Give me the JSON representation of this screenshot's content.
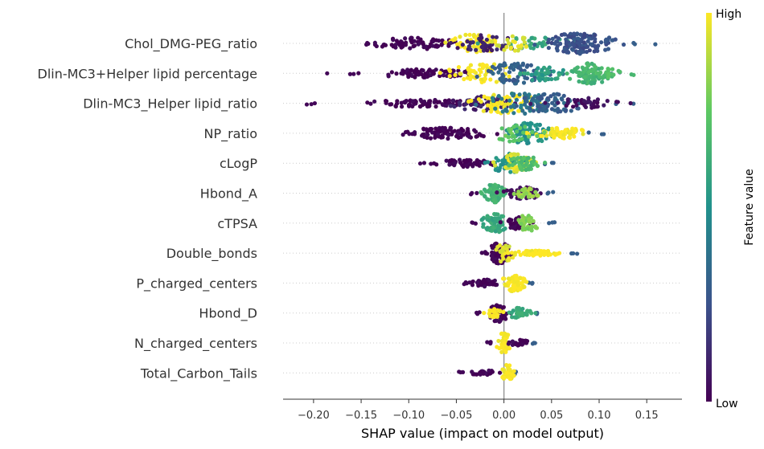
{
  "chart_data": {
    "type": "scatter",
    "subtype": "shap-beeswarm",
    "xlabel": "SHAP value (impact on model output)",
    "xlim": [
      -0.232,
      0.187
    ],
    "xticks": [
      -0.2,
      -0.15,
      -0.1,
      -0.05,
      0.0,
      0.05,
      0.1,
      0.15
    ],
    "xtick_labels": [
      "−0.20",
      "−0.15",
      "−0.10",
      "−0.05",
      "0.00",
      "0.05",
      "0.10",
      "0.15"
    ],
    "grid": "dotted horizontal row guides",
    "colorbar": {
      "label": "Feature value",
      "high_label": "High",
      "low_label": "Low",
      "colormap": "viridis",
      "colors": [
        "#440154",
        "#3b528b",
        "#21918c",
        "#5ec962",
        "#fde725"
      ]
    },
    "features": [
      {
        "name": "Chol_DMG-PEG_ratio",
        "min": -0.17,
        "max": 0.166,
        "clusters": [
          {
            "center": -0.09,
            "spread": 0.04,
            "feature_value": 0.0,
            "count": 70,
            "height": 0.55
          },
          {
            "center": -0.03,
            "spread": 0.025,
            "feature_value": 1.0,
            "count": 60,
            "height": 0.9
          },
          {
            "center": -0.02,
            "spread": 0.03,
            "feature_value": 0.1,
            "count": 40,
            "height": 0.8
          },
          {
            "center": 0.03,
            "spread": 0.03,
            "feature_value": 0.6,
            "count": 30,
            "height": 0.6
          },
          {
            "center": 0.08,
            "spread": 0.03,
            "feature_value": 0.25,
            "count": 130,
            "height": 1.0
          },
          {
            "center": 0.01,
            "spread": 0.02,
            "feature_value": 0.95,
            "count": 25,
            "height": 0.7
          }
        ]
      },
      {
        "name": "Dlin-MC3+Helper lipid percentage",
        "min": -0.19,
        "max": 0.14,
        "clusters": [
          {
            "center": -0.08,
            "spread": 0.05,
            "feature_value": 0.0,
            "count": 80,
            "height": 0.4
          },
          {
            "center": -0.02,
            "spread": 0.03,
            "feature_value": 1.0,
            "count": 60,
            "height": 0.9
          },
          {
            "center": 0.01,
            "spread": 0.03,
            "feature_value": 0.3,
            "count": 70,
            "height": 1.0
          },
          {
            "center": 0.04,
            "spread": 0.02,
            "feature_value": 0.55,
            "count": 40,
            "height": 0.7
          },
          {
            "center": 0.09,
            "spread": 0.02,
            "feature_value": 0.65,
            "count": 90,
            "height": 1.0
          },
          {
            "center": 0.11,
            "spread": 0.02,
            "feature_value": 0.7,
            "count": 25,
            "height": 0.5
          }
        ]
      },
      {
        "name": "Dlin-MC3_Helper lipid_ratio",
        "min": -0.215,
        "max": 0.14,
        "clusters": [
          {
            "center": -0.09,
            "spread": 0.05,
            "feature_value": 0.0,
            "count": 80,
            "height": 0.35
          },
          {
            "center": -0.02,
            "spread": 0.03,
            "feature_value": 0.1,
            "count": 60,
            "height": 0.7
          },
          {
            "center": 0.0,
            "spread": 0.03,
            "feature_value": 1.0,
            "count": 60,
            "height": 1.0
          },
          {
            "center": 0.02,
            "spread": 0.03,
            "feature_value": 0.4,
            "count": 60,
            "height": 1.0
          },
          {
            "center": 0.05,
            "spread": 0.03,
            "feature_value": 0.3,
            "count": 60,
            "height": 0.9
          },
          {
            "center": 0.09,
            "spread": 0.03,
            "feature_value": 0.05,
            "count": 40,
            "height": 0.5
          }
        ]
      },
      {
        "name": "NP_ratio",
        "min": -0.12,
        "max": 0.11,
        "clusters": [
          {
            "center": -0.06,
            "spread": 0.035,
            "feature_value": 0.0,
            "count": 90,
            "height": 0.55
          },
          {
            "center": 0.025,
            "spread": 0.02,
            "feature_value": 0.5,
            "count": 80,
            "height": 1.0
          },
          {
            "center": 0.06,
            "spread": 0.025,
            "feature_value": 1.0,
            "count": 60,
            "height": 0.5
          },
          {
            "center": 0.01,
            "spread": 0.02,
            "feature_value": 0.75,
            "count": 30,
            "height": 0.8
          }
        ]
      },
      {
        "name": "cLogP",
        "min": -0.09,
        "max": 0.055,
        "clusters": [
          {
            "center": -0.04,
            "spread": 0.025,
            "feature_value": 0.0,
            "count": 50,
            "height": 0.35
          },
          {
            "center": 0.005,
            "spread": 0.015,
            "feature_value": 0.5,
            "count": 60,
            "height": 1.0
          },
          {
            "center": 0.01,
            "spread": 0.015,
            "feature_value": 0.95,
            "count": 40,
            "height": 0.9
          },
          {
            "center": 0.02,
            "spread": 0.015,
            "feature_value": 0.7,
            "count": 40,
            "height": 0.7
          }
        ]
      },
      {
        "name": "Hbond_A",
        "min": -0.035,
        "max": 0.055,
        "clusters": [
          {
            "center": -0.01,
            "spread": 0.01,
            "feature_value": 0.65,
            "count": 70,
            "height": 0.9
          },
          {
            "center": 0.02,
            "spread": 0.015,
            "feature_value": 0.05,
            "count": 50,
            "height": 0.6
          },
          {
            "center": 0.025,
            "spread": 0.01,
            "feature_value": 0.85,
            "count": 30,
            "height": 0.5
          }
        ]
      },
      {
        "name": "cTPSA",
        "min": -0.035,
        "max": 0.055,
        "clusters": [
          {
            "center": -0.01,
            "spread": 0.012,
            "feature_value": 0.6,
            "count": 70,
            "height": 0.9
          },
          {
            "center": 0.015,
            "spread": 0.01,
            "feature_value": 0.0,
            "count": 40,
            "height": 0.6
          },
          {
            "center": 0.025,
            "spread": 0.01,
            "feature_value": 0.8,
            "count": 40,
            "height": 0.8
          }
        ]
      },
      {
        "name": "Double_bonds",
        "min": -0.03,
        "max": 0.08,
        "clusters": [
          {
            "center": -0.005,
            "spread": 0.01,
            "feature_value": 0.0,
            "count": 80,
            "height": 1.0
          },
          {
            "center": 0.0,
            "spread": 0.008,
            "feature_value": 0.95,
            "count": 25,
            "height": 0.9
          },
          {
            "center": 0.035,
            "spread": 0.02,
            "feature_value": 1.0,
            "count": 50,
            "height": 0.25
          }
        ]
      },
      {
        "name": "P_charged_centers",
        "min": -0.045,
        "max": 0.035,
        "clusters": [
          {
            "center": -0.02,
            "spread": 0.012,
            "feature_value": 0.0,
            "count": 50,
            "height": 0.35
          },
          {
            "center": 0.01,
            "spread": 0.01,
            "feature_value": 1.0,
            "count": 60,
            "height": 0.8
          }
        ]
      },
      {
        "name": "Hbond_D",
        "min": -0.03,
        "max": 0.035,
        "clusters": [
          {
            "center": -0.005,
            "spread": 0.008,
            "feature_value": 0.0,
            "count": 50,
            "height": 0.9
          },
          {
            "center": 0.015,
            "spread": 0.01,
            "feature_value": 0.6,
            "count": 35,
            "height": 0.5
          },
          {
            "center": -0.01,
            "spread": 0.01,
            "feature_value": 1.0,
            "count": 20,
            "height": 0.4
          }
        ]
      },
      {
        "name": "N_charged_centers",
        "min": -0.02,
        "max": 0.035,
        "clusters": [
          {
            "center": 0.0,
            "spread": 0.006,
            "feature_value": 1.0,
            "count": 40,
            "height": 1.0
          },
          {
            "center": 0.015,
            "spread": 0.01,
            "feature_value": 0.0,
            "count": 30,
            "height": 0.3
          }
        ]
      },
      {
        "name": "Total_Carbon_Tails",
        "min": -0.05,
        "max": 0.015,
        "clusters": [
          {
            "center": -0.02,
            "spread": 0.012,
            "feature_value": 0.0,
            "count": 30,
            "height": 0.25
          },
          {
            "center": 0.004,
            "spread": 0.005,
            "feature_value": 1.0,
            "count": 40,
            "height": 0.8
          }
        ]
      }
    ]
  }
}
